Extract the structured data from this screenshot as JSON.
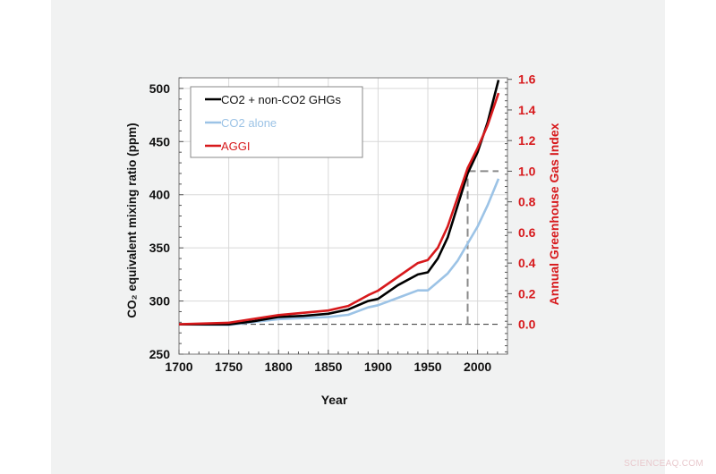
{
  "watermark": "SCIENCEAQ.COM",
  "chart_data": {
    "type": "line",
    "xlabel": "Year",
    "ylabel": "CO₂ equivalent mixing ratio (ppm)",
    "y2label": "Annual Greenhouse Gas Index",
    "xlim": [
      1700,
      2030
    ],
    "ylim": [
      250,
      510
    ],
    "y2lim": [
      -0.195,
      1.61
    ],
    "xticks": [
      "1700",
      "1750",
      "1800",
      "1850",
      "1900",
      "1950",
      "2000"
    ],
    "yticks": [
      "250",
      "300",
      "350",
      "400",
      "450",
      "500"
    ],
    "y2ticks": [
      "0.0",
      "0.2",
      "0.4",
      "0.6",
      "0.8",
      "1.0",
      "1.2",
      "1.4",
      "1.6"
    ],
    "grid": true,
    "legend": "top-left",
    "colors": {
      "black": "#000000",
      "blue": "#9cc3e6",
      "red": "#d7191c",
      "axis2": "#d7191c"
    },
    "series": [
      {
        "name": "CO2 + non-CO2 GHGs",
        "axis": "left",
        "color": "#000000",
        "x": [
          1700,
          1750,
          1775,
          1800,
          1825,
          1850,
          1870,
          1890,
          1900,
          1920,
          1940,
          1950,
          1960,
          1970,
          1980,
          1990,
          2000,
          2010,
          2021
        ],
        "y": [
          278,
          278,
          281,
          285,
          286,
          288,
          292,
          300,
          302,
          315,
          325,
          327,
          340,
          360,
          390,
          420,
          440,
          468,
          508
        ]
      },
      {
        "name": "CO2 alone",
        "axis": "left",
        "color": "#9cc3e6",
        "x": [
          1700,
          1750,
          1800,
          1850,
          1870,
          1890,
          1900,
          1920,
          1940,
          1950,
          1960,
          1970,
          1980,
          1990,
          2000,
          2010,
          2021
        ],
        "y": [
          278,
          277.5,
          283,
          285,
          287,
          294,
          296,
          303,
          310,
          310,
          318,
          326,
          338,
          354,
          370,
          390,
          415
        ]
      },
      {
        "name": "AGGI",
        "axis": "right",
        "color": "#d7191c",
        "x": [
          1700,
          1750,
          1800,
          1850,
          1870,
          1890,
          1900,
          1920,
          1940,
          1950,
          1960,
          1970,
          1980,
          1990,
          2000,
          2010,
          2021
        ],
        "y": [
          0,
          0.01,
          0.06,
          0.09,
          0.12,
          0.19,
          0.22,
          0.31,
          0.4,
          0.42,
          0.5,
          0.64,
          0.83,
          1.02,
          1.15,
          1.3,
          1.51
        ]
      }
    ],
    "reference_lines": [
      {
        "kind": "horizontal",
        "axis": "right",
        "value": 0.0,
        "from": 1700,
        "to": 2021
      },
      {
        "kind": "vertical",
        "x": 1990,
        "from": 0.0,
        "to": 1.0
      },
      {
        "kind": "horizontal",
        "axis": "right",
        "value": 1.0,
        "from": 1990,
        "to": 2021
      }
    ]
  }
}
